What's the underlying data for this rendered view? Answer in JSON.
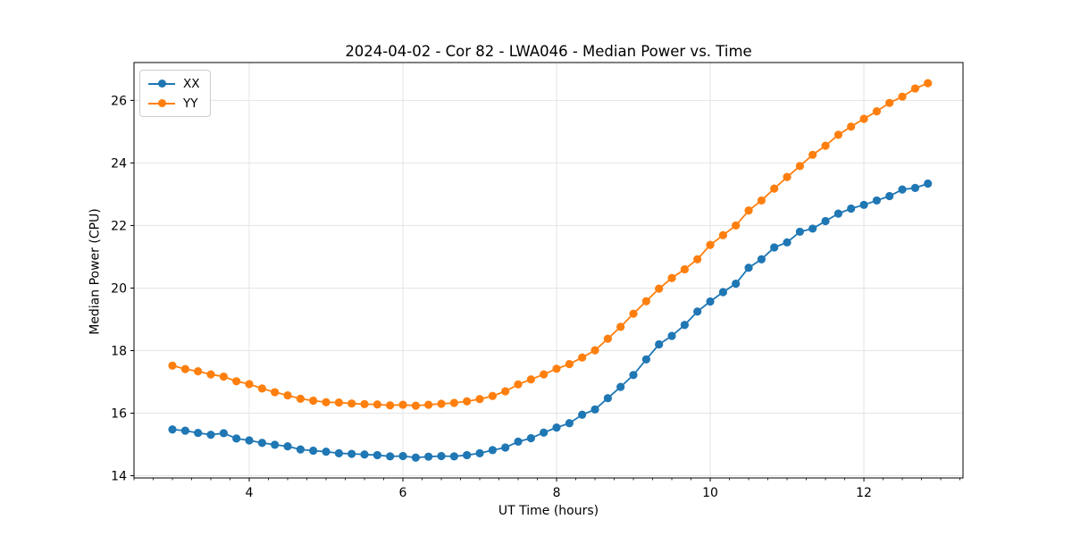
{
  "chart_data": {
    "type": "line",
    "title": "2024-04-02 - Cor 82 - LWA046 - Median Power vs. Time",
    "xlabel": "UT Time (hours)",
    "ylabel": "Median Power (CPU)",
    "xlim": [
      2.5,
      13.29
    ],
    "ylim": [
      13.93,
      27.21
    ],
    "x_ticks": [
      4,
      6,
      8,
      10,
      12
    ],
    "x_minor_step": 0.25,
    "y_ticks": [
      14,
      16,
      18,
      20,
      22,
      24,
      26
    ],
    "grid": true,
    "legend_position": "upper-left",
    "marker": "circle",
    "x": [
      3.0,
      3.167,
      3.333,
      3.5,
      3.667,
      3.833,
      4.0,
      4.167,
      4.333,
      4.5,
      4.667,
      4.833,
      5.0,
      5.167,
      5.333,
      5.5,
      5.667,
      5.833,
      6.0,
      6.167,
      6.333,
      6.5,
      6.667,
      6.833,
      7.0,
      7.167,
      7.333,
      7.5,
      7.667,
      7.833,
      8.0,
      8.167,
      8.333,
      8.5,
      8.667,
      8.833,
      9.0,
      9.167,
      9.333,
      9.5,
      9.667,
      9.833,
      10.0,
      10.167,
      10.333,
      10.5,
      10.667,
      10.833,
      11.0,
      11.167,
      11.333,
      11.5,
      11.667,
      11.833,
      12.0,
      12.167,
      12.333,
      12.5,
      12.667,
      12.833
    ],
    "series": [
      {
        "name": "XX",
        "color": "#1f77b4",
        "values": [
          15.48,
          15.44,
          15.37,
          15.31,
          15.36,
          15.19,
          15.13,
          15.05,
          14.99,
          14.94,
          14.84,
          14.8,
          14.77,
          14.72,
          14.7,
          14.68,
          14.66,
          14.62,
          14.63,
          14.58,
          14.61,
          14.63,
          14.62,
          14.66,
          14.72,
          14.82,
          14.9,
          15.09,
          15.2,
          15.38,
          15.54,
          15.68,
          15.95,
          16.12,
          16.48,
          16.84,
          17.22,
          17.72,
          18.2,
          18.47,
          18.82,
          19.25,
          19.57,
          19.87,
          20.14,
          20.65,
          20.92,
          21.3,
          21.46,
          21.8,
          21.9,
          22.14,
          22.38,
          22.54,
          22.66,
          22.8,
          22.94,
          23.15,
          23.2,
          23.34
        ]
      },
      {
        "name": "YY",
        "color": "#ff7f0e",
        "values": [
          17.52,
          17.41,
          17.34,
          17.24,
          17.17,
          17.02,
          16.93,
          16.79,
          16.67,
          16.57,
          16.46,
          16.4,
          16.35,
          16.34,
          16.31,
          16.29,
          16.28,
          16.25,
          16.27,
          16.24,
          16.27,
          16.3,
          16.33,
          16.38,
          16.45,
          16.55,
          16.7,
          16.92,
          17.08,
          17.24,
          17.42,
          17.57,
          17.78,
          18.01,
          18.38,
          18.76,
          19.18,
          19.58,
          19.98,
          20.32,
          20.6,
          20.92,
          21.38,
          21.69,
          22.0,
          22.48,
          22.8,
          23.18,
          23.55,
          23.9,
          24.26,
          24.55,
          24.9,
          25.16,
          25.41,
          25.65,
          25.92,
          26.12,
          26.38,
          26.55
        ]
      }
    ]
  },
  "style": {
    "grid_color": "#e4e4e4",
    "spine_color": "#000000",
    "text_color": "#000000",
    "background": "#ffffff"
  }
}
